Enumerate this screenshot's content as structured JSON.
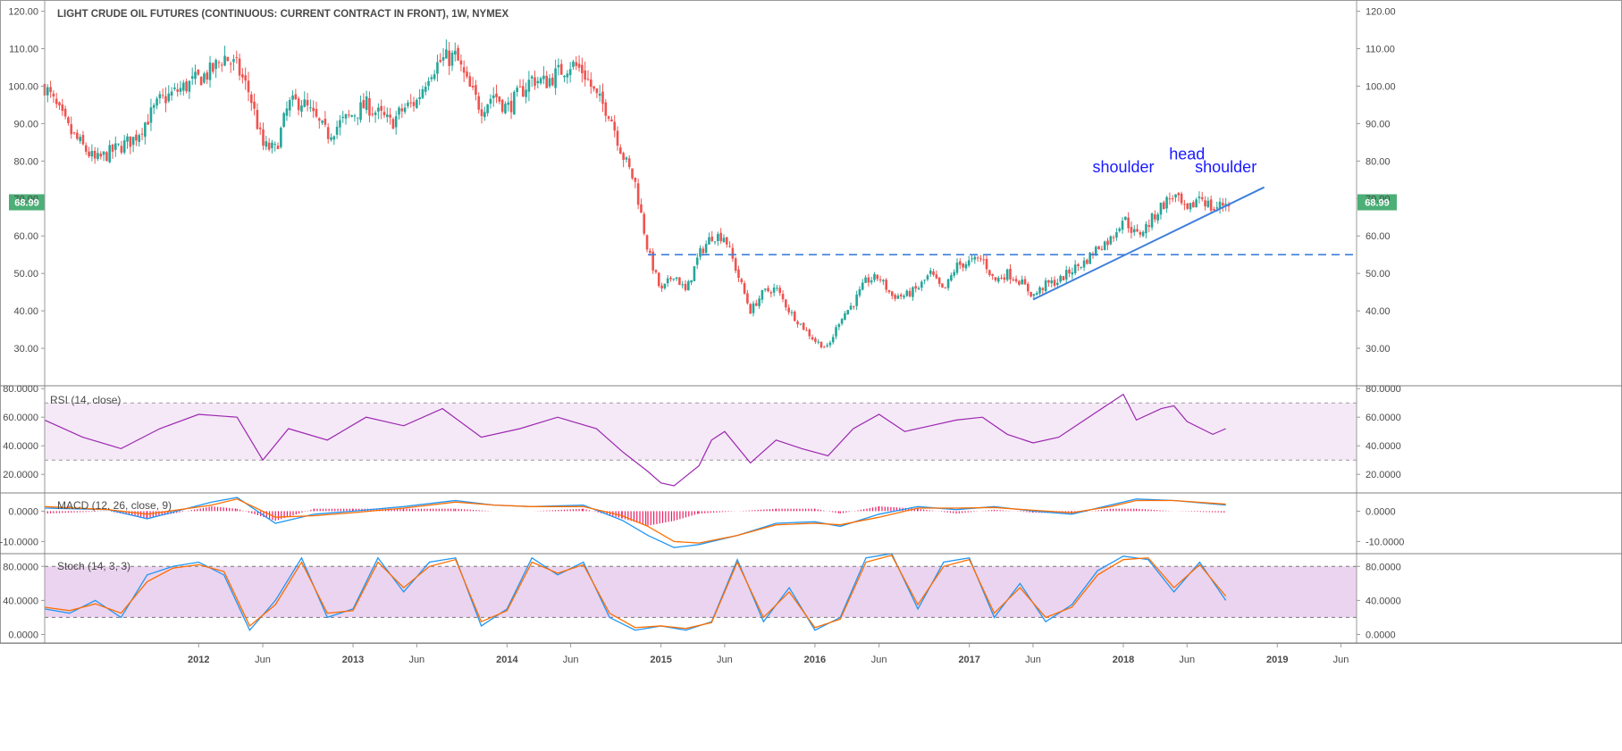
{
  "chart_title": "LIGHT CRUDE OIL FUTURES (CONTINUOUS: CURRENT CONTRACT IN FRONT), 1W, NYMEX",
  "last_price_label": "68.99",
  "colors": {
    "up": "#26a69a",
    "down": "#ef5350",
    "rsi": "#9c27b0",
    "rsi_band": "rgba(156,39,176,0.10)",
    "stoch_band": "rgba(156,39,176,0.20)",
    "macd_line": "#2196f3",
    "signal_line": "#ff6d00",
    "histogram": "#e91e63",
    "trendline": "#3f7fdb",
    "neckline": "#3f7fdb",
    "last_price": "#4caf77",
    "annotation": "#1a1aff"
  },
  "chart_data": [
    {
      "type": "candlestick",
      "panel": "price",
      "title": "LIGHT CRUDE OIL FUTURES (CONTINUOUS: CURRENT CONTRACT IN FRONT), 1W, NYMEX",
      "ylim": [
        20,
        123
      ],
      "y_ticks": [
        "120.00",
        "110.00",
        "100.00",
        "90.00",
        "80.00",
        "70.00",
        "60.00",
        "50.00",
        "40.00",
        "30.00"
      ],
      "y_tick_values": [
        120,
        110,
        100,
        90,
        80,
        70,
        60,
        50,
        40,
        30
      ],
      "last_price": 68.99,
      "neckline": 55,
      "trendline": [
        {
          "x": "2017-06",
          "y": 43
        },
        {
          "x": "2018-12",
          "y": 73
        }
      ],
      "annotations": [
        {
          "text": "shoulder",
          "x": "2018-01",
          "y": 77
        },
        {
          "text": "head",
          "x": "2018-06",
          "y": 80.5
        },
        {
          "text": "shoulder",
          "x": "2018-09",
          "y": 77
        }
      ],
      "anchors": [
        [
          "2011-01",
          100
        ],
        [
          "2011-03",
          88
        ],
        [
          "2011-05",
          80
        ],
        [
          "2011-08",
          86
        ],
        [
          "2011-10",
          96
        ],
        [
          "2011-12",
          100
        ],
        [
          "2012-02",
          104
        ],
        [
          "2012-03",
          108
        ],
        [
          "2012-04",
          105
        ],
        [
          "2012-05",
          98
        ],
        [
          "2012-06",
          84
        ],
        [
          "2012-07",
          83
        ],
        [
          "2012-08",
          95
        ],
        [
          "2012-09",
          96
        ],
        [
          "2012-11",
          87
        ],
        [
          "2012-12",
          90
        ],
        [
          "2013-02",
          95
        ],
        [
          "2013-04",
          90
        ],
        [
          "2013-05",
          94
        ],
        [
          "2013-06",
          96
        ],
        [
          "2013-07",
          104
        ],
        [
          "2013-08",
          107
        ],
        [
          "2013-09",
          108
        ],
        [
          "2013-10",
          100
        ],
        [
          "2013-11",
          94
        ],
        [
          "2013-12",
          98
        ],
        [
          "2014-01",
          94
        ],
        [
          "2014-03",
          102
        ],
        [
          "2014-04",
          101
        ],
        [
          "2014-06",
          106
        ],
        [
          "2014-07",
          104
        ],
        [
          "2014-08",
          97
        ],
        [
          "2014-09",
          93
        ],
        [
          "2014-10",
          82
        ],
        [
          "2014-11",
          74
        ],
        [
          "2014-12",
          56
        ],
        [
          "2015-01",
          45
        ],
        [
          "2015-02",
          50
        ],
        [
          "2015-03",
          45
        ],
        [
          "2015-04",
          55
        ],
        [
          "2015-05",
          60
        ],
        [
          "2015-06",
          60
        ],
        [
          "2015-07",
          50
        ],
        [
          "2015-08",
          40
        ],
        [
          "2015-09",
          45
        ],
        [
          "2015-10",
          46
        ],
        [
          "2015-11",
          40
        ],
        [
          "2015-12",
          36
        ],
        [
          "2016-01",
          32
        ],
        [
          "2016-02",
          30
        ],
        [
          "2016-03",
          38
        ],
        [
          "2016-04",
          42
        ],
        [
          "2016-05",
          48
        ],
        [
          "2016-06",
          49
        ],
        [
          "2016-07",
          44
        ],
        [
          "2016-08",
          44
        ],
        [
          "2016-09",
          46
        ],
        [
          "2016-10",
          50
        ],
        [
          "2016-11",
          45
        ],
        [
          "2016-12",
          52
        ],
        [
          "2017-01",
          53
        ],
        [
          "2017-02",
          54
        ],
        [
          "2017-03",
          48
        ],
        [
          "2017-04",
          50
        ],
        [
          "2017-05",
          48
        ],
        [
          "2017-06",
          44
        ],
        [
          "2017-07",
          47
        ],
        [
          "2017-08",
          48
        ],
        [
          "2017-09",
          51
        ],
        [
          "2017-10",
          53
        ],
        [
          "2017-11",
          57
        ],
        [
          "2017-12",
          59
        ],
        [
          "2018-01",
          65
        ],
        [
          "2018-02",
          60
        ],
        [
          "2018-03",
          63
        ],
        [
          "2018-04",
          68
        ],
        [
          "2018-05",
          71
        ],
        [
          "2018-06",
          66
        ],
        [
          "2018-07",
          71
        ],
        [
          "2018-08",
          67
        ],
        [
          "2018-09",
          68.99
        ]
      ]
    },
    {
      "type": "line",
      "panel": "rsi",
      "title": "RSI (14, close)",
      "ylim": [
        7,
        82
      ],
      "y_ticks": [
        "80.0000",
        "60.0000",
        "40.0000",
        "20.0000"
      ],
      "y_tick_values": [
        80,
        60,
        40,
        20
      ],
      "band": [
        30,
        70
      ],
      "series": [
        {
          "name": "RSI (14, close)",
          "x": [
            "2011-01",
            "2011-04",
            "2011-07",
            "2011-10",
            "2012-01",
            "2012-04",
            "2012-06",
            "2012-08",
            "2012-11",
            "2013-02",
            "2013-05",
            "2013-08",
            "2013-11",
            "2014-02",
            "2014-05",
            "2014-08",
            "2014-10",
            "2014-12",
            "2015-01",
            "2015-02",
            "2015-04",
            "2015-05",
            "2015-06",
            "2015-08",
            "2015-10",
            "2015-12",
            "2016-02",
            "2016-04",
            "2016-06",
            "2016-08",
            "2016-10",
            "2016-12",
            "2017-02",
            "2017-04",
            "2017-06",
            "2017-08",
            "2017-10",
            "2017-12",
            "2018-01",
            "2018-02",
            "2018-04",
            "2018-05",
            "2018-06",
            "2018-08",
            "2018-09"
          ],
          "values": [
            58,
            46,
            38,
            52,
            62,
            60,
            30,
            52,
            44,
            60,
            54,
            66,
            46,
            52,
            60,
            52,
            36,
            22,
            14,
            12,
            26,
            44,
            50,
            28,
            44,
            38,
            33,
            52,
            62,
            50,
            54,
            58,
            60,
            48,
            42,
            46,
            58,
            70,
            76,
            58,
            66,
            68,
            57,
            48,
            52
          ]
        }
      ]
    },
    {
      "type": "line",
      "panel": "macd",
      "title": "MACD (12, 26, close, 9)",
      "ylim": [
        -14,
        6
      ],
      "y_ticks": [
        "0.0000",
        "-10.0000"
      ],
      "y_tick_values": [
        0,
        -10
      ],
      "x": [
        "2011-01",
        "2011-06",
        "2011-09",
        "2012-02",
        "2012-04",
        "2012-07",
        "2012-10",
        "2013-01",
        "2013-05",
        "2013-09",
        "2013-12",
        "2014-03",
        "2014-07",
        "2014-10",
        "2014-12",
        "2015-02",
        "2015-04",
        "2015-07",
        "2015-10",
        "2016-01",
        "2016-03",
        "2016-06",
        "2016-09",
        "2016-12",
        "2017-03",
        "2017-06",
        "2017-09",
        "2017-12",
        "2018-02",
        "2018-05",
        "2018-09"
      ],
      "series": [
        {
          "name": "MACD",
          "values": [
            1,
            0.5,
            -2.5,
            3,
            4.5,
            -4,
            -1,
            0,
            1.5,
            3.5,
            2,
            1.5,
            2,
            -3,
            -8,
            -12,
            -11,
            -8,
            -4,
            -3.5,
            -5,
            -1,
            1.5,
            0.5,
            1.5,
            0,
            -1,
            2,
            4,
            3.5,
            2
          ]
        },
        {
          "name": "Signal",
          "values": [
            1.5,
            0.5,
            -1,
            2,
            4,
            -2,
            -1.5,
            -0.5,
            1,
            3,
            2,
            1.5,
            1.5,
            -1.5,
            -5,
            -10,
            -10.5,
            -8,
            -4.5,
            -4,
            -4.5,
            -2,
            1,
            1,
            1.2,
            0.3,
            -0.5,
            1.5,
            3.5,
            3.5,
            2.3
          ]
        }
      ]
    },
    {
      "type": "line",
      "panel": "stoch",
      "title": "Stoch (14, 3, 3)",
      "ylim": [
        -10,
        95
      ],
      "y_ticks": [
        "80.0000",
        "40.0000",
        "0.0000"
      ],
      "y_tick_values": [
        80,
        40,
        0
      ],
      "band": [
        20,
        80
      ],
      "x": [
        "2011-01",
        "2011-03",
        "2011-05",
        "2011-07",
        "2011-09",
        "2011-11",
        "2012-01",
        "2012-03",
        "2012-05",
        "2012-07",
        "2012-09",
        "2012-11",
        "2013-01",
        "2013-03",
        "2013-05",
        "2013-07",
        "2013-09",
        "2013-11",
        "2014-01",
        "2014-03",
        "2014-05",
        "2014-07",
        "2014-09",
        "2014-11",
        "2015-01",
        "2015-03",
        "2015-05",
        "2015-07",
        "2015-09",
        "2015-11",
        "2016-01",
        "2016-03",
        "2016-05",
        "2016-07",
        "2016-09",
        "2016-11",
        "2017-01",
        "2017-03",
        "2017-05",
        "2017-07",
        "2017-09",
        "2017-11",
        "2018-01",
        "2018-03",
        "2018-05",
        "2018-07",
        "2018-09"
      ],
      "series": [
        {
          "name": "%K",
          "values": [
            30,
            25,
            40,
            20,
            70,
            80,
            85,
            70,
            5,
            40,
            90,
            20,
            30,
            90,
            50,
            85,
            90,
            10,
            30,
            90,
            70,
            85,
            20,
            5,
            10,
            5,
            15,
            88,
            15,
            55,
            5,
            20,
            90,
            95,
            30,
            85,
            90,
            20,
            60,
            15,
            35,
            75,
            92,
            88,
            50,
            85,
            40
          ]
        },
        {
          "name": "%D",
          "values": [
            32,
            28,
            36,
            25,
            62,
            78,
            82,
            74,
            10,
            35,
            85,
            25,
            28,
            85,
            55,
            80,
            88,
            15,
            28,
            85,
            72,
            82,
            25,
            8,
            10,
            7,
            14,
            85,
            20,
            50,
            8,
            18,
            85,
            93,
            35,
            80,
            88,
            25,
            55,
            20,
            32,
            70,
            88,
            90,
            55,
            82,
            45
          ]
        }
      ]
    }
  ],
  "x_axis": {
    "ticks": [
      {
        "label": "2012",
        "t": "2012-01"
      },
      {
        "label": "Jun",
        "t": "2012-06"
      },
      {
        "label": "2013",
        "t": "2013-01"
      },
      {
        "label": "Jun",
        "t": "2013-06"
      },
      {
        "label": "2014",
        "t": "2014-01"
      },
      {
        "label": "Jun",
        "t": "2014-06"
      },
      {
        "label": "2015",
        "t": "2015-01"
      },
      {
        "label": "Jun",
        "t": "2015-06"
      },
      {
        "label": "2016",
        "t": "2016-01"
      },
      {
        "label": "Jun",
        "t": "2016-06"
      },
      {
        "label": "2017",
        "t": "2017-01"
      },
      {
        "label": "Jun",
        "t": "2017-06"
      },
      {
        "label": "2018",
        "t": "2018-01"
      },
      {
        "label": "Jun",
        "t": "2018-06"
      },
      {
        "label": "2019",
        "t": "2019-01"
      },
      {
        "label": "Jun",
        "t": "2019-06"
      }
    ]
  }
}
